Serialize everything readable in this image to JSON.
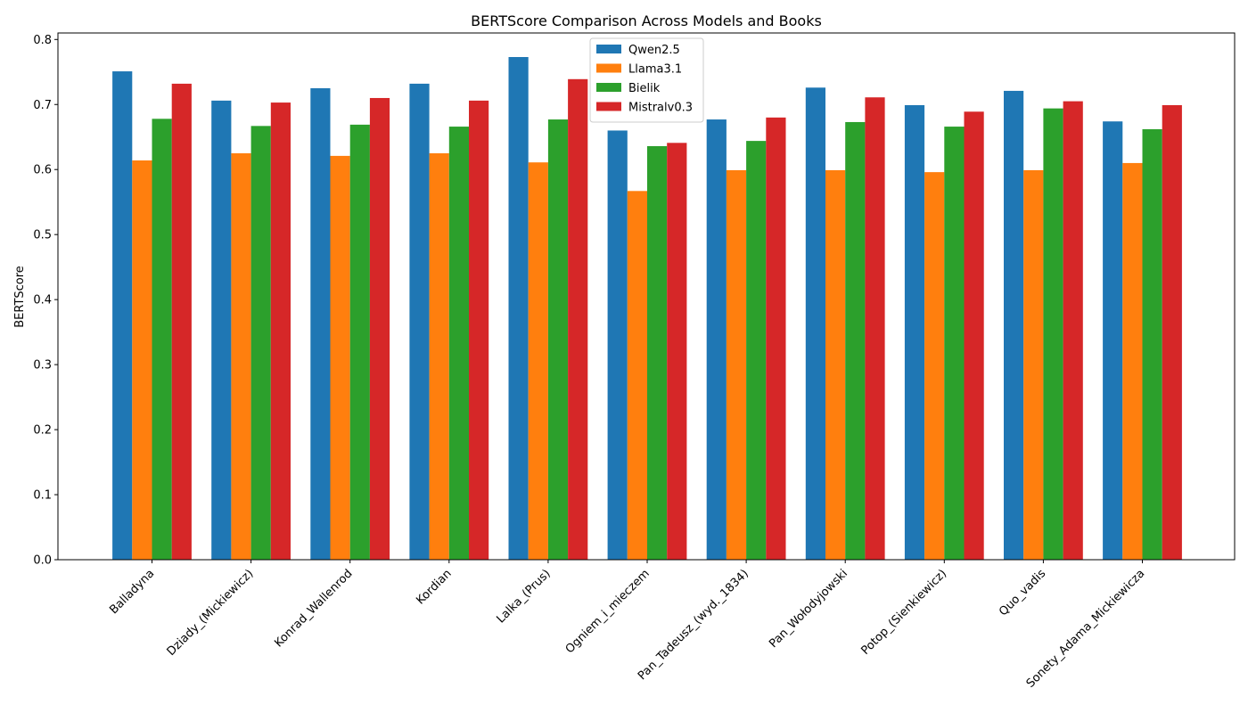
{
  "chart_data": {
    "type": "bar",
    "title": "BERTScore Comparison Across Models and Books",
    "xlabel": "",
    "ylabel": "BERTScore",
    "ylim": [
      0,
      0.81
    ],
    "yticks": [
      "0.0",
      "0.1",
      "0.2",
      "0.3",
      "0.4",
      "0.5",
      "0.6",
      "0.7",
      "0.8"
    ],
    "grid": false,
    "legend_position": "top-center",
    "categories": [
      "Balladyna",
      "Dziady_(Mickiewicz)",
      "Konrad_Wallenrod",
      "Kordian",
      "Lalka_(Prus)",
      "Ogniem_i_mieczem",
      "Pan_Tadeusz_(wyd._1834)",
      "Pan_Wołodyjowski",
      "Potop_(Sienkiewicz)",
      "Quo_vadis",
      "Sonety_Adama_Mickiewicza"
    ],
    "series": [
      {
        "name": "Qwen2.5",
        "color": "#1f77b4",
        "values": [
          0.751,
          0.706,
          0.725,
          0.732,
          0.773,
          0.66,
          0.677,
          0.726,
          0.699,
          0.721,
          0.674
        ]
      },
      {
        "name": "Llama3.1",
        "color": "#ff7f0e",
        "values": [
          0.614,
          0.625,
          0.621,
          0.625,
          0.611,
          0.567,
          0.599,
          0.599,
          0.596,
          0.599,
          0.61
        ]
      },
      {
        "name": "Bielik",
        "color": "#2ca02c",
        "values": [
          0.678,
          0.667,
          0.669,
          0.666,
          0.677,
          0.636,
          0.644,
          0.673,
          0.666,
          0.694,
          0.662
        ]
      },
      {
        "name": "Mistralv0.3",
        "color": "#d62728",
        "values": [
          0.732,
          0.703,
          0.71,
          0.706,
          0.739,
          0.641,
          0.68,
          0.711,
          0.689,
          0.705,
          0.699
        ]
      }
    ]
  }
}
